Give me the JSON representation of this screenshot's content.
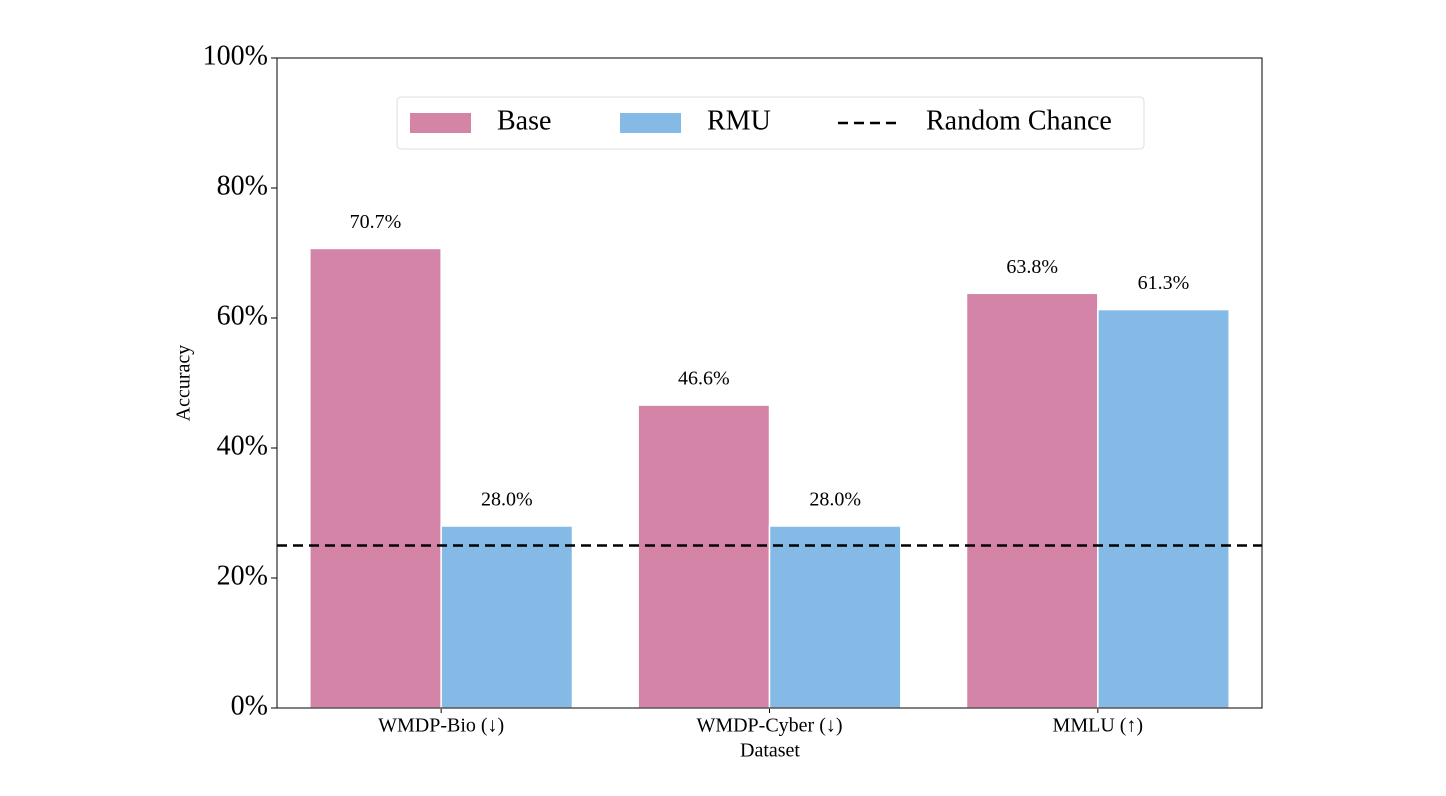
{
  "chart_data": {
    "type": "bar",
    "xlabel": "Dataset",
    "ylabel": "Accuracy",
    "categories": [
      "WMDP-Bio (↓)",
      "WMDP-Cyber (↓)",
      "MMLU (↑)"
    ],
    "series": [
      {
        "name": "Base",
        "color": "#d484a7",
        "values": [
          70.7,
          46.6,
          63.8
        ],
        "value_labels": [
          "70.7%",
          "46.6%",
          "63.8%"
        ]
      },
      {
        "name": "RMU",
        "color": "#85b9e6",
        "values": [
          28.0,
          28.0,
          61.3
        ],
        "value_labels": [
          "28.0%",
          "28.0%",
          "61.3%"
        ]
      }
    ],
    "reference_lines": [
      {
        "name": "Random Chance",
        "value": 25,
        "color": "#000000",
        "style": "dashed"
      }
    ],
    "ylim": [
      0,
      100
    ],
    "yticks": [
      {
        "value": 0,
        "label": "0%"
      },
      {
        "value": 20,
        "label": "20%"
      },
      {
        "value": 40,
        "label": "40%"
      },
      {
        "value": 60,
        "label": "60%"
      },
      {
        "value": 80,
        "label": "80%"
      },
      {
        "value": 100,
        "label": "100%"
      }
    ],
    "grid": false,
    "legend": "top"
  }
}
